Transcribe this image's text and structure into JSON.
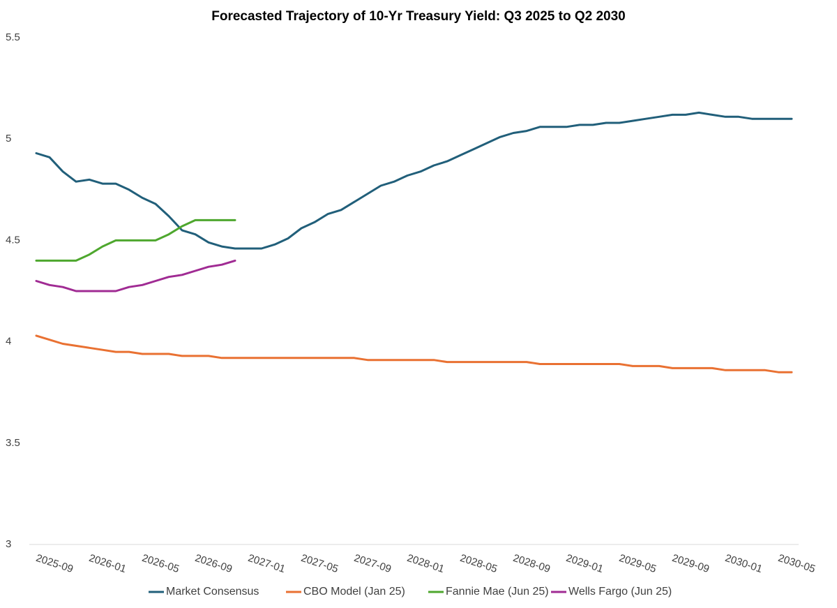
{
  "chart_data": {
    "type": "line",
    "title": "Forecasted Trajectory of 10-Yr Treasury Yield: Q3 2025 to Q2 2030",
    "categories": [
      "2025-09",
      null,
      null,
      null,
      "2026-01",
      null,
      null,
      null,
      "2026-05",
      null,
      null,
      null,
      "2026-09",
      null,
      null,
      null,
      "2027-01",
      null,
      null,
      null,
      "2027-05",
      null,
      null,
      null,
      "2027-09",
      null,
      null,
      null,
      "2028-01",
      null,
      null,
      null,
      "2028-05",
      null,
      null,
      null,
      "2028-09",
      null,
      null,
      null,
      "2029-01",
      null,
      null,
      null,
      "2029-05",
      null,
      null,
      null,
      "2029-09",
      null,
      null,
      null,
      "2030-01",
      null,
      null,
      null,
      "2030-05",
      null
    ],
    "series": [
      {
        "name": "Market Consensus",
        "color": "#215f7a",
        "values": [
          4.93,
          4.91,
          4.84,
          4.79,
          4.8,
          4.78,
          4.78,
          4.75,
          4.71,
          4.68,
          4.62,
          4.55,
          4.53,
          4.49,
          4.47,
          4.46,
          4.46,
          4.46,
          4.48,
          4.51,
          4.56,
          4.59,
          4.63,
          4.65,
          4.69,
          4.73,
          4.77,
          4.79,
          4.82,
          4.84,
          4.87,
          4.89,
          4.92,
          4.95,
          4.98,
          5.01,
          5.03,
          5.04,
          5.06,
          5.06,
          5.06,
          5.07,
          5.07,
          5.08,
          5.08,
          5.09,
          5.1,
          5.11,
          5.12,
          5.12,
          5.13,
          5.12,
          5.11,
          5.11,
          5.1,
          5.1,
          5.1,
          5.1
        ]
      },
      {
        "name": "CBO Model (Jan 25)",
        "color": "#e97132",
        "values": [
          4.03,
          4.01,
          3.99,
          3.98,
          3.97,
          3.96,
          3.95,
          3.95,
          3.94,
          3.94,
          3.94,
          3.93,
          3.93,
          3.93,
          3.92,
          3.92,
          3.92,
          3.92,
          3.92,
          3.92,
          3.92,
          3.92,
          3.92,
          3.92,
          3.92,
          3.91,
          3.91,
          3.91,
          3.91,
          3.91,
          3.91,
          3.9,
          3.9,
          3.9,
          3.9,
          3.9,
          3.9,
          3.9,
          3.89,
          3.89,
          3.89,
          3.89,
          3.89,
          3.89,
          3.89,
          3.88,
          3.88,
          3.88,
          3.87,
          3.87,
          3.87,
          3.87,
          3.86,
          3.86,
          3.86,
          3.86,
          3.85,
          3.85
        ]
      },
      {
        "name": "Fannie Mae (Jun 25)",
        "color": "#4ea72e",
        "values": [
          4.4,
          4.4,
          4.4,
          4.4,
          4.43,
          4.47,
          4.5,
          4.5,
          4.5,
          4.5,
          4.53,
          4.57,
          4.6,
          4.6,
          4.6,
          4.6,
          null,
          null,
          null,
          null,
          null,
          null,
          null,
          null,
          null,
          null,
          null,
          null,
          null,
          null,
          null,
          null,
          null,
          null,
          null,
          null,
          null,
          null,
          null,
          null,
          null,
          null,
          null,
          null,
          null,
          null,
          null,
          null,
          null,
          null,
          null,
          null,
          null,
          null,
          null,
          null,
          null,
          null
        ]
      },
      {
        "name": "Wells Fargo (Jun 25)",
        "color": "#a02b93",
        "values": [
          4.3,
          4.28,
          4.27,
          4.25,
          4.25,
          4.25,
          4.25,
          4.27,
          4.28,
          4.3,
          4.32,
          4.33,
          4.35,
          4.37,
          4.38,
          4.4,
          null,
          null,
          null,
          null,
          null,
          null,
          null,
          null,
          null,
          null,
          null,
          null,
          null,
          null,
          null,
          null,
          null,
          null,
          null,
          null,
          null,
          null,
          null,
          null,
          null,
          null,
          null,
          null,
          null,
          null,
          null,
          null,
          null,
          null,
          null,
          null,
          null,
          null,
          null,
          null,
          null,
          null
        ]
      }
    ],
    "ylim": [
      3,
      5.5
    ],
    "yticks": [
      3,
      3.5,
      4,
      4.5,
      5,
      5.5
    ],
    "grid": false,
    "legend": "bottom"
  }
}
